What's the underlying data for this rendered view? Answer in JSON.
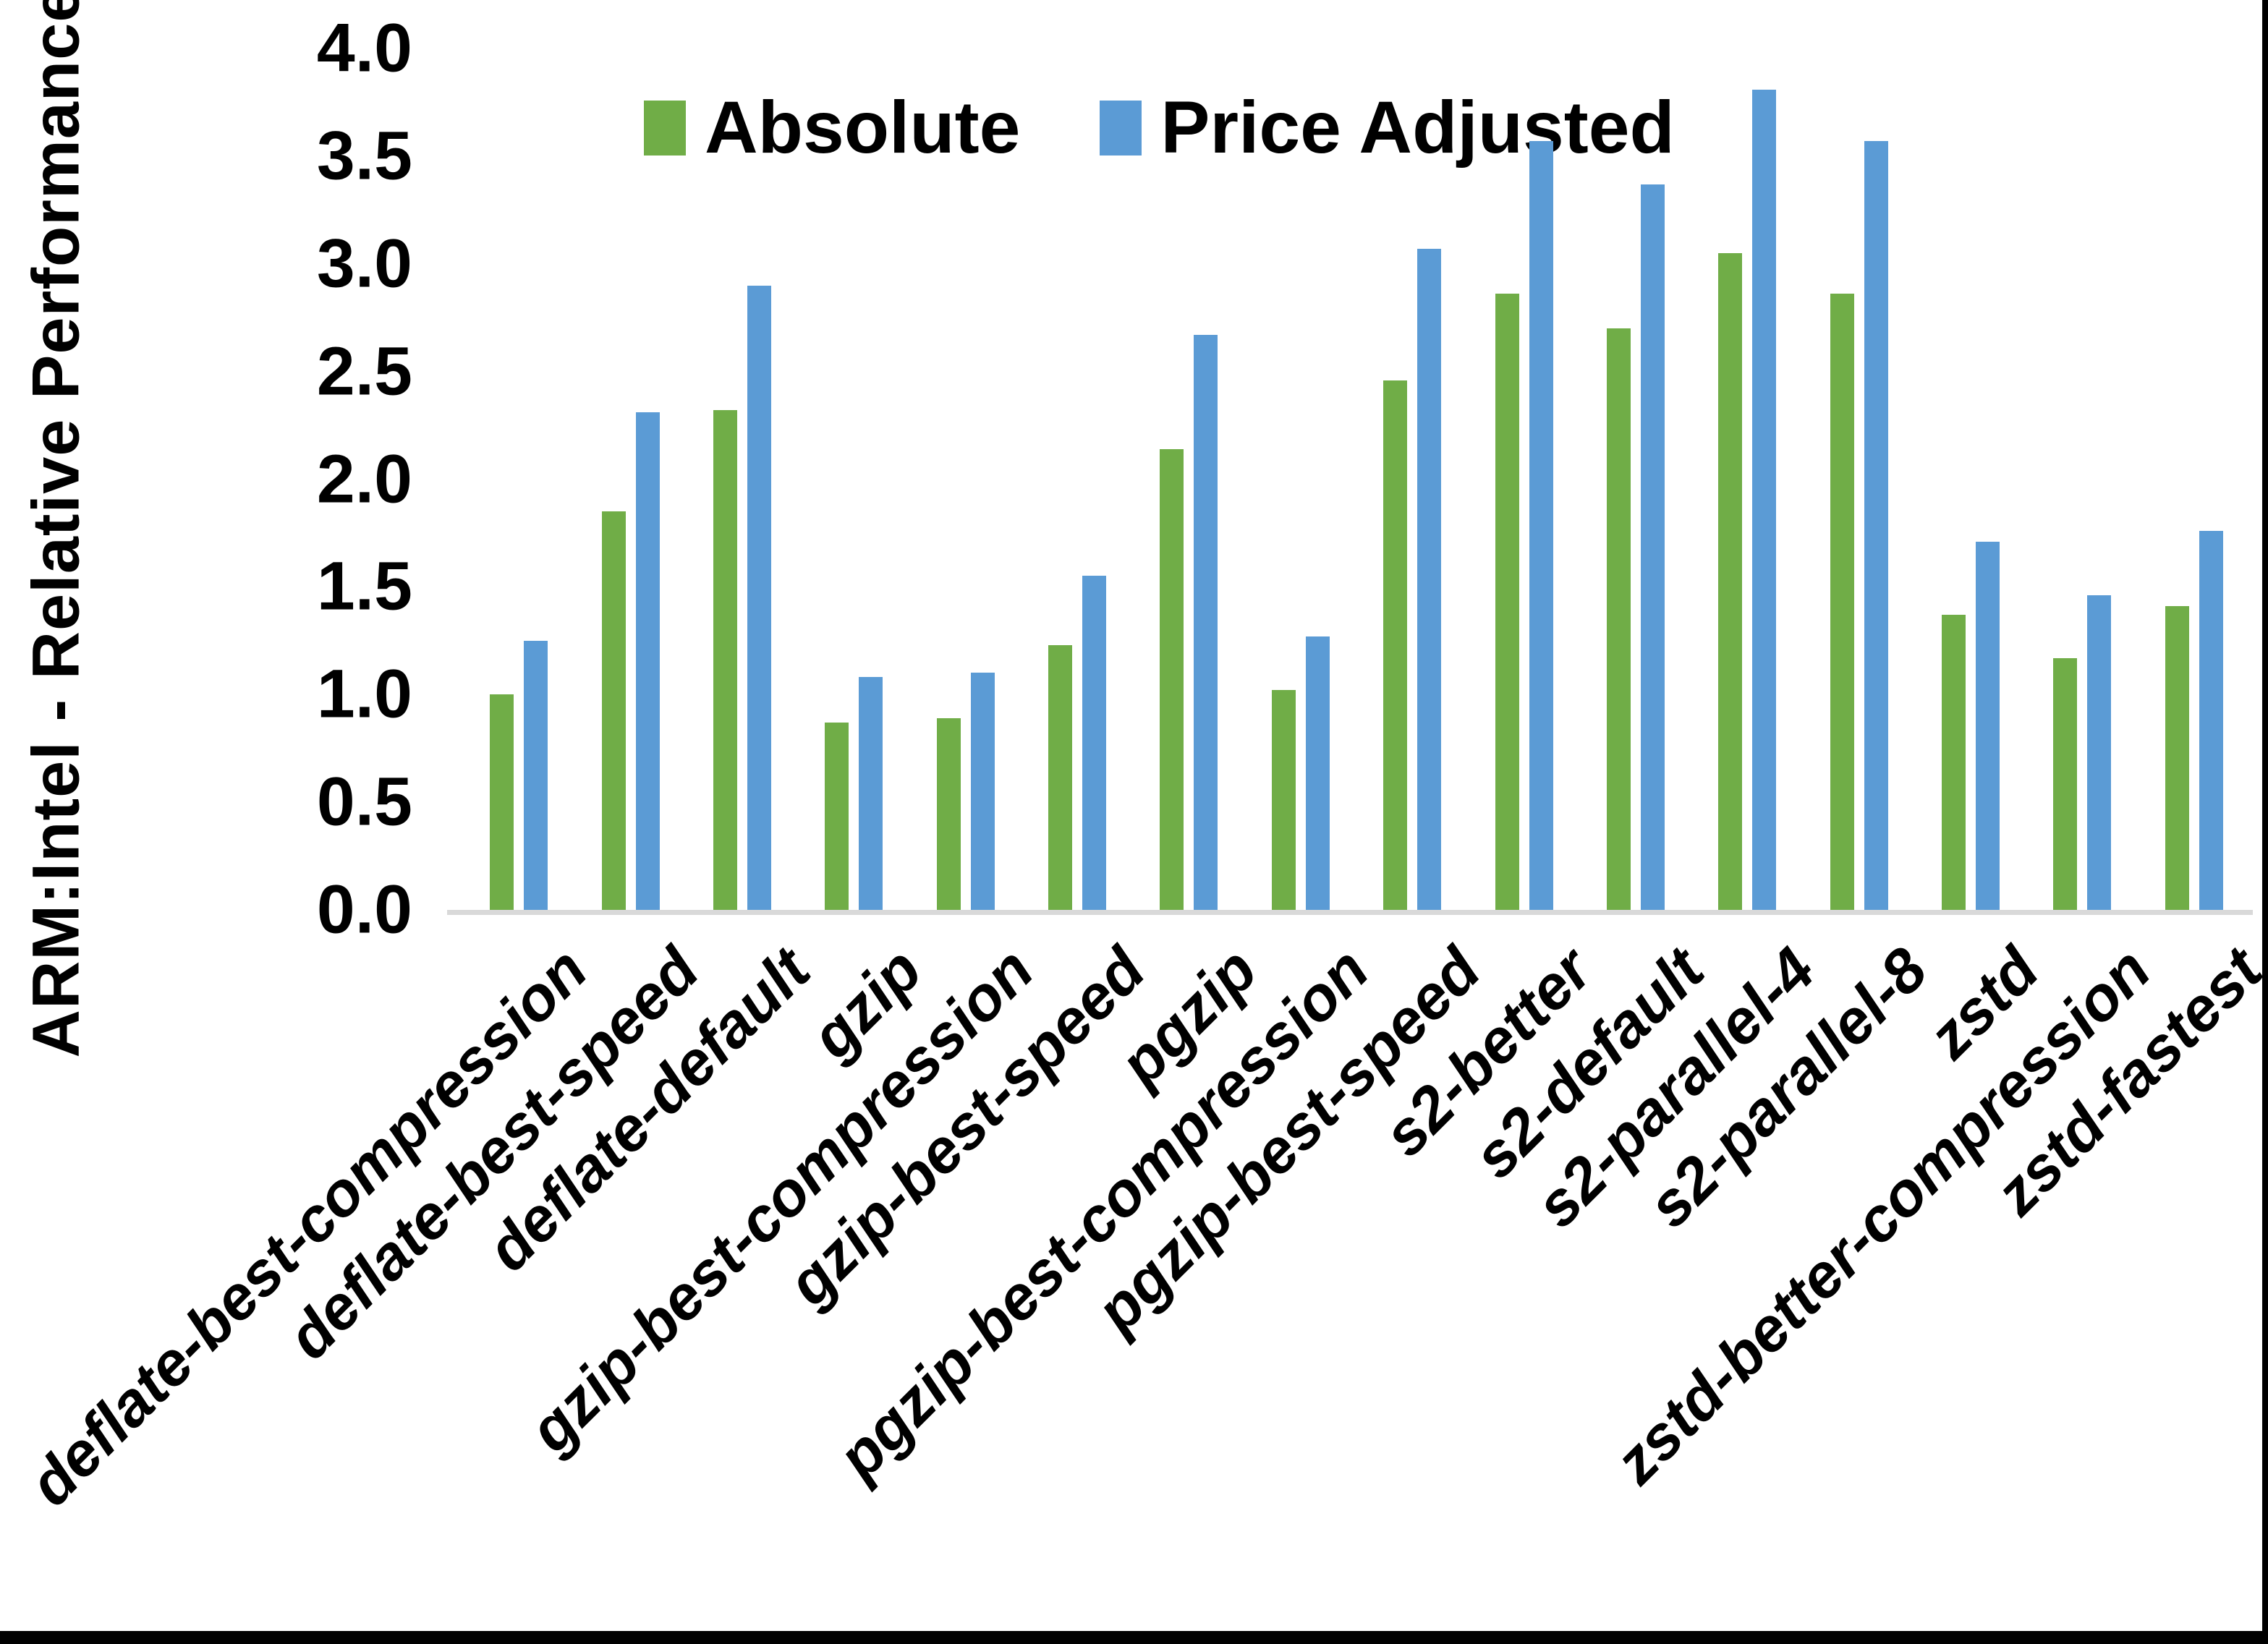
{
  "chart_data": {
    "type": "bar",
    "title": "",
    "xlabel": "",
    "ylabel": "ARM:Intel - Relative Performance",
    "ylim": [
      0.0,
      4.0
    ],
    "ytick_labels": [
      "0.0",
      "0.5",
      "1.0",
      "1.5",
      "2.0",
      "2.5",
      "3.0",
      "3.5",
      "4.0"
    ],
    "grid": false,
    "legend_position": "top-center",
    "categories": [
      "deflate-best-compression",
      "deflate-best-speed",
      "deflate-default",
      "gzip",
      "gzip-best-compression",
      "gzip-best-speed",
      "pgzip",
      "pgzip-best-compression",
      "pgzip-best-speed",
      "s2-better",
      "s2-default",
      "s2-parallel-4",
      "s2-parallel-8",
      "zstd",
      "zstd-better-compression",
      "zstd-fastest"
    ],
    "series": [
      {
        "name": "Absolute",
        "color": "#70ad47",
        "values": [
          1.0,
          1.85,
          2.32,
          0.87,
          0.89,
          1.23,
          2.14,
          1.02,
          2.46,
          2.86,
          2.7,
          3.05,
          2.86,
          1.37,
          1.17,
          1.41
        ]
      },
      {
        "name": "Price Adjusted",
        "color": "#5b9bd5",
        "values": [
          1.25,
          2.31,
          2.9,
          1.08,
          1.1,
          1.55,
          2.67,
          1.27,
          3.07,
          3.57,
          3.37,
          3.81,
          3.57,
          1.71,
          1.46,
          1.76
        ]
      }
    ]
  },
  "colors": {
    "background": "#ffffff",
    "text": "#000000",
    "axis_line": "#d9d9d9",
    "page_border": "#000000"
  }
}
